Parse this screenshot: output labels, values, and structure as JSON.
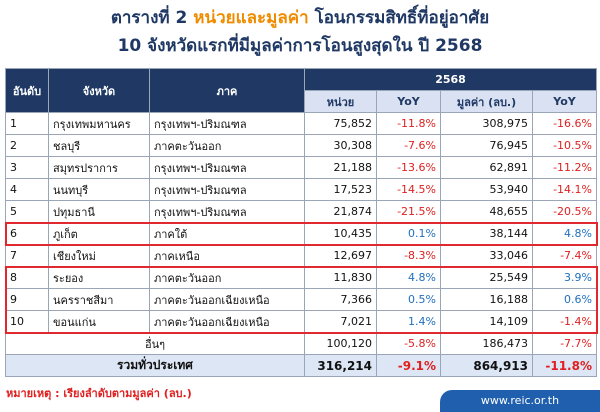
{
  "title": {
    "prefix": "ตารางที่ 2",
    "highlight": "หน่วยและมูลค่า",
    "suffix": "โอนกรรมสิทธิ์ที่อยู่อาศัย",
    "line2": "10 จังหวัดแรกที่มีมูลค่าการโอนสูงสุดใน ปี 2568"
  },
  "table": {
    "header": {
      "rank": "อันดับ",
      "province": "จังหวัด",
      "region": "ภาค",
      "year": "2568",
      "units": "หน่วย",
      "units_yoy": "YoY",
      "value": "มูลค่า (ลบ.)",
      "value_yoy": "YoY"
    },
    "rows": [
      [
        "1",
        "กรุงเทพมหานคร",
        "กรุงเทพฯ-ปริมณฑล",
        "75,852",
        "-11.8%",
        "308,975",
        "-16.6%"
      ],
      [
        "2",
        "ชลบุรี",
        "ภาคตะวันออก",
        "30,308",
        "-7.6%",
        "76,945",
        "-10.5%"
      ],
      [
        "3",
        "สมุทรปราการ",
        "กรุงเทพฯ-ปริมณฑล",
        "21,188",
        "-13.6%",
        "62,891",
        "-11.2%"
      ],
      [
        "4",
        "นนทบุรี",
        "กรุงเทพฯ-ปริมณฑล",
        "17,523",
        "-14.5%",
        "53,940",
        "-14.1%"
      ],
      [
        "5",
        "ปทุมธานี",
        "กรุงเทพฯ-ปริมณฑล",
        "21,874",
        "-21.5%",
        "48,655",
        "-20.5%"
      ],
      [
        "6",
        "ภูเก็ต",
        "ภาคใต้",
        "10,435",
        "0.1%",
        "38,144",
        "4.8%"
      ],
      [
        "7",
        "เชียงใหม่",
        "ภาคเหนือ",
        "12,697",
        "-8.3%",
        "33,046",
        "-7.4%"
      ],
      [
        "8",
        "ระยอง",
        "ภาคตะวันออก",
        "11,830",
        "4.8%",
        "25,549",
        "3.9%"
      ],
      [
        "9",
        "นครราชสีมา",
        "ภาคตะวันออกเฉียงเหนือ",
        "7,366",
        "0.5%",
        "16,188",
        "0.6%"
      ],
      [
        "10",
        "ขอนแก่น",
        "ภาคตะวันออกเฉียงเหนือ",
        "7,021",
        "1.4%",
        "14,109",
        "-1.4%"
      ]
    ],
    "others": {
      "label": "อื่นๆ",
      "units": "100,120",
      "units_yoy": "-5.8%",
      "value": "186,473",
      "value_yoy": "-7.7%"
    },
    "total": {
      "label": "รวมทั่วประเทศ",
      "units": "316,214",
      "units_yoy": "-9.1%",
      "value": "864,913",
      "value_yoy": "-11.8%"
    }
  },
  "note": "หมายเหตุ : เรียงลำดับตามมูลค่า (ลบ.)",
  "url": "www.reic.or.th"
}
